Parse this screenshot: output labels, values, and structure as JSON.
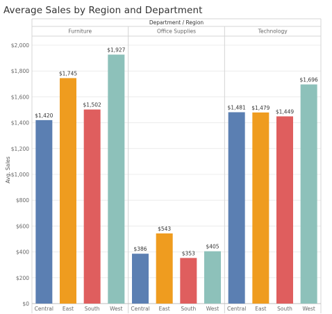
{
  "chart_data": {
    "type": "bar",
    "title": "Average Sales by Region and Department",
    "column_header": "Department / Region",
    "ylabel": "Avg. Sales",
    "ylim": [
      0,
      2000
    ],
    "yticks": [
      0,
      200,
      400,
      600,
      800,
      1000,
      1200,
      1400,
      1600,
      1800,
      2000
    ],
    "ytick_labels": [
      "$0",
      "$200",
      "$400",
      "$600",
      "$800",
      "$1,000",
      "$1,200",
      "$1,400",
      "$1,600",
      "$1,800",
      "$2,000"
    ],
    "grid": true,
    "colors": {
      "Central": "#5b7fb2",
      "East": "#ef9c1f",
      "South": "#df5e5e",
      "West": "#8dc1ba"
    },
    "panels": [
      {
        "department": "Furniture",
        "bars": [
          {
            "region": "Central",
            "value": 1420,
            "label": "$1,420"
          },
          {
            "region": "East",
            "value": 1745,
            "label": "$1,745"
          },
          {
            "region": "South",
            "value": 1502,
            "label": "$1,502"
          },
          {
            "region": "West",
            "value": 1927,
            "label": "$1,927"
          }
        ]
      },
      {
        "department": "Office Supplies",
        "bars": [
          {
            "region": "Central",
            "value": 386,
            "label": "$386"
          },
          {
            "region": "East",
            "value": 543,
            "label": "$543"
          },
          {
            "region": "South",
            "value": 353,
            "label": "$353"
          },
          {
            "region": "West",
            "value": 405,
            "label": "$405"
          }
        ]
      },
      {
        "department": "Technology",
        "bars": [
          {
            "region": "Central",
            "value": 1481,
            "label": "$1,481"
          },
          {
            "region": "East",
            "value": 1479,
            "label": "$1,479"
          },
          {
            "region": "South",
            "value": 1449,
            "label": "$1,449"
          },
          {
            "region": "West",
            "value": 1696,
            "label": "$1,696"
          }
        ]
      }
    ]
  }
}
